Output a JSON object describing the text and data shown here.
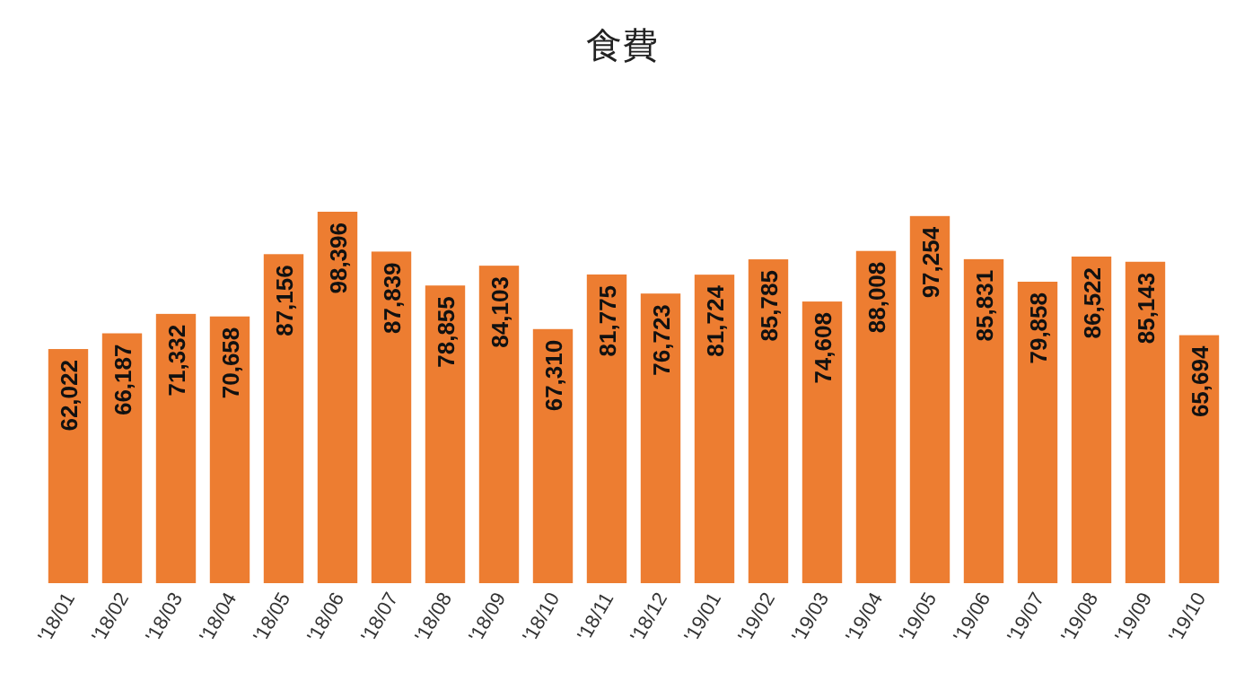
{
  "chart_data": {
    "type": "bar",
    "title": "食費",
    "categories": [
      "'18/01",
      "'18/02",
      "'18/03",
      "'18/04",
      "'18/05",
      "'18/06",
      "'18/07",
      "'18/08",
      "'18/09",
      "'18/10",
      "'18/11",
      "'18/12",
      "'19/01",
      "'19/02",
      "'19/03",
      "'19/04",
      "'19/05",
      "'19/06",
      "'19/07",
      "'19/08",
      "'19/09",
      "'19/10"
    ],
    "values": [
      62022,
      66187,
      71332,
      70658,
      87156,
      98396,
      87839,
      78855,
      84103,
      67310,
      81775,
      76723,
      81724,
      85785,
      74608,
      88008,
      97254,
      85831,
      79858,
      86522,
      85143,
      65694
    ],
    "color": "#ed7d31",
    "value_labels": [
      "62,022",
      "66,187",
      "71,332",
      "70,658",
      "87,156",
      "98,396",
      "87,839",
      "78,855",
      "84,103",
      "67,310",
      "81,775",
      "76,723",
      "81,724",
      "85,785",
      "74,608",
      "88,008",
      "97,254",
      "85,831",
      "79,858",
      "86,522",
      "85,143",
      "65,694"
    ]
  }
}
